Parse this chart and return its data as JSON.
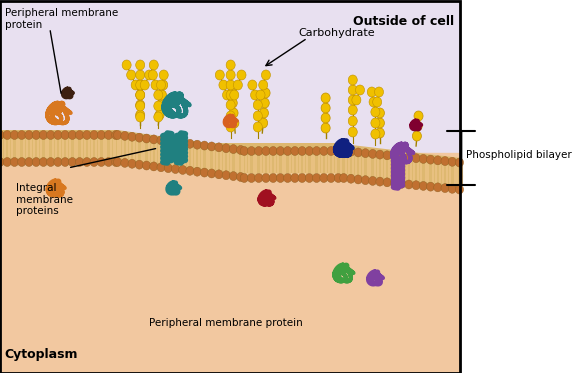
{
  "title": "",
  "outside_label": "Outside of cell",
  "cytoplasm_label": "Cytoplasm",
  "carbohydrate_label": "Carbohydrate",
  "phospholipid_label": "Phospholipid bilayer",
  "integral_label": "Integral\nmembrane\nproteins",
  "peripheral_top_label": "Peripheral membrane\nprotein",
  "peripheral_bottom_label": "Peripheral membrane protein",
  "bg_outside": "#e8e0f0",
  "bg_cytoplasm": "#f2c8a0",
  "bg_membrane_head": "#c87840",
  "bg_membrane_tail": "#f0d0a0",
  "carbohydrate_color": "#f0c000",
  "protein_colors": {
    "orange": "#d87820",
    "teal": "#208080",
    "dark_orange": "#c06020",
    "red": "#a01020",
    "navy": "#102080",
    "purple": "#8040a0",
    "green": "#40a040",
    "dark_brown": "#604020",
    "maroon": "#800020"
  },
  "figsize": [
    5.8,
    3.73
  ],
  "dpi": 100
}
